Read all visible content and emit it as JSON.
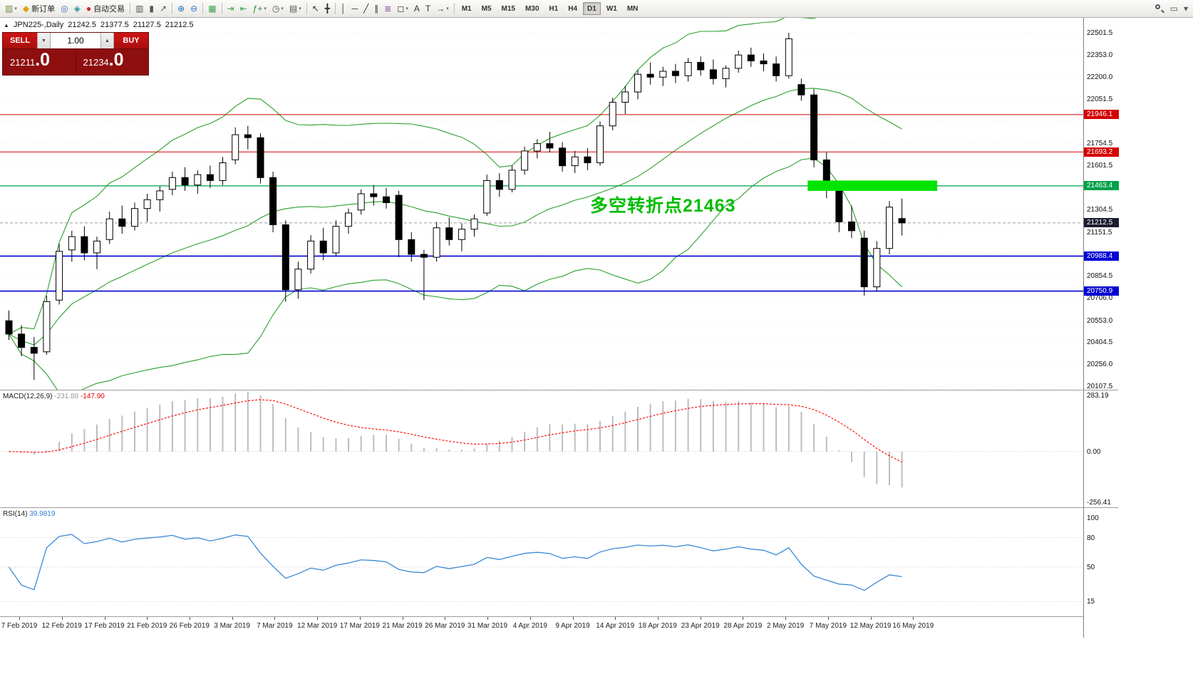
{
  "toolbar": {
    "dropdown_glyph": "▾",
    "new_order_label": "新订单",
    "autotrading_label": "自动交易",
    "timeframes": [
      "M1",
      "M5",
      "M15",
      "M30",
      "H1",
      "H4",
      "D1",
      "W1",
      "MN"
    ],
    "active_timeframe": "D1",
    "items": [
      {
        "name": "new-chart-button",
        "glyph": "▥",
        "color": "#6b8f3e",
        "dd": true
      },
      {
        "name": "new-order-button",
        "glyph": "◆",
        "color": "#dba410",
        "label": "新订单"
      },
      {
        "name": "profiles-icon",
        "glyph": "◎",
        "color": "#3a6fc4"
      },
      {
        "name": "data-window-icon",
        "glyph": "◈",
        "color": "#2f8f9e"
      },
      {
        "name": "autotrading-button",
        "glyph": "●",
        "color": "#cc2222",
        "label": "自动交易"
      },
      {
        "sep": true
      },
      {
        "name": "bar-chart-icon",
        "glyph": "▥",
        "color": "#555555"
      },
      {
        "name": "candlestick-chart-icon",
        "glyph": "▮",
        "color": "#555555"
      },
      {
        "name": "line-chart-icon",
        "glyph": "↗",
        "color": "#555555"
      },
      {
        "sep": true
      },
      {
        "name": "zoom-in-icon",
        "glyph": "⊕",
        "color": "#2a6fbb"
      },
      {
        "name": "zoom-out-icon",
        "glyph": "⊖",
        "color": "#2a6fbb"
      },
      {
        "sep": true
      },
      {
        "name": "tile-windows-icon",
        "glyph": "▦",
        "color": "#3c9e4d"
      },
      {
        "sep": true
      },
      {
        "name": "auto-scroll-icon",
        "glyph": "⇥",
        "color": "#3c9e4d"
      },
      {
        "name": "chart-shift-icon",
        "glyph": "⇤",
        "color": "#3c9e4d"
      },
      {
        "name": "indicators-icon",
        "glyph": "ƒ+",
        "color": "#2e8b2e",
        "dd": true
      },
      {
        "name": "periods-icon",
        "glyph": "◷",
        "color": "#555555",
        "dd": true
      },
      {
        "name": "templates-icon",
        "glyph": "▤",
        "color": "#555555",
        "dd": true
      },
      {
        "sep": true
      },
      {
        "name": "cursor-icon",
        "glyph": "↖",
        "color": "#333333"
      },
      {
        "name": "crosshair-icon",
        "glyph": "╋",
        "color": "#333333"
      },
      {
        "sep": true
      },
      {
        "name": "vertical-line-icon",
        "glyph": "│",
        "color": "#333333"
      },
      {
        "name": "horizontal-line-icon",
        "glyph": "─",
        "color": "#333333"
      },
      {
        "name": "trendline-icon",
        "glyph": "╱",
        "color": "#333333"
      },
      {
        "name": "channel-icon",
        "glyph": "∥",
        "color": "#333333"
      },
      {
        "name": "fibonacci-icon",
        "glyph": "≣",
        "color": "#8a5fb0"
      },
      {
        "name": "shapes-icon",
        "glyph": "◻",
        "color": "#333333",
        "dd": true
      },
      {
        "name": "text-icon",
        "glyph": "A",
        "color": "#333333"
      },
      {
        "name": "text-label-icon",
        "glyph": "T",
        "color": "#333333"
      },
      {
        "name": "arrows-icon",
        "glyph": "→",
        "color": "#333333",
        "dd": true
      },
      {
        "sep": true
      }
    ],
    "right_items": [
      {
        "name": "chart-search-button",
        "search": true
      },
      {
        "name": "window-layout-icon",
        "glyph": "▭",
        "color": "#555555"
      },
      {
        "name": "more-options-chevron",
        "glyph": "▾",
        "color": "#555555"
      }
    ]
  },
  "chart": {
    "header": {
      "toggle_glyph": "▲",
      "symbol_period": "JPN225-,Daily",
      "open": "21242.5",
      "high": "21377.5",
      "low": "21127.5",
      "close": "21212.5"
    },
    "one_click": {
      "sell_label": "SELL",
      "buy_label": "BUY",
      "volume": "1.00",
      "vol_down_glyph": "▼",
      "vol_up_glyph": "▲",
      "sell_price_main": "21211",
      "sell_price_big": ".0",
      "buy_price_main": "21234",
      "buy_price_big": ".0"
    },
    "annotation": {
      "text": "多空转折点21463",
      "color": "#00bd00"
    },
    "hlines": [
      {
        "price": 21946.1,
        "label": "21946.1",
        "color": "#d40000",
        "width": 1
      },
      {
        "price": 21693.2,
        "label": "21693.2",
        "color": "#d40000",
        "width": 1
      },
      {
        "price": 21463.4,
        "label": "21463.4",
        "color": "#00a24a",
        "width": 1.2
      },
      {
        "price": 20988.4,
        "label": "20988.4",
        "color": "#0000d4",
        "width": 1.6
      },
      {
        "price": 20750.9,
        "label": "20750.9",
        "color": "#0000d4",
        "width": 1.6
      }
    ],
    "current_price": {
      "value": 21212.5,
      "label": "21212.5",
      "chip_color": "#1c1c30"
    },
    "highlight_rect": {
      "color": "#00e400",
      "price_top": 21500,
      "price_bottom": 21430,
      "from_bar": 63.5,
      "to_bar": 73.8
    },
    "price_axis": [
      "22501.5",
      "22353.0",
      "22200.0",
      "22051.5",
      "21903.0",
      "21754.5",
      "21601.5",
      "21453.0",
      "21304.5",
      "21151.5",
      "21003.0",
      "20854.5",
      "20706.0",
      "20553.0",
      "20404.5",
      "20256.0",
      "20107.5"
    ],
    "time_axis": [
      "7 Feb 2019",
      "12 Feb 2019",
      "17 Feb 2019",
      "21 Feb 2019",
      "26 Feb 2019",
      "3 Mar 2019",
      "7 Mar 2019",
      "12 Mar 2019",
      "17 Mar 2019",
      "21 Mar 2019",
      "26 Mar 2019",
      "31 Mar 2019",
      "4 Apr 2019",
      "9 Apr 2019",
      "14 Apr 2019",
      "18 Apr 2019",
      "23 Apr 2019",
      "28 Apr 2019",
      "2 May 2019",
      "7 May 2019",
      "12 May 2019",
      "16 May 2019"
    ]
  },
  "macd": {
    "title": "MACD(12,26,9)",
    "value_main": "-231.88",
    "value_signal": "-147.90",
    "axis": [
      "283.19",
      "0.00",
      "-256.41"
    ],
    "bar_color": "#bdbdbd",
    "signal_color": "#ff0000"
  },
  "rsi": {
    "title": "RSI(14)",
    "value": "39.9819",
    "axis": [
      "100",
      "80",
      "50",
      "15"
    ],
    "levels": [
      80,
      50,
      15
    ],
    "line_color": "#3a8ad6"
  },
  "styles": {
    "bollinger_color": "#2aa02a",
    "grid_color": "#f0f0f0",
    "bull_color": "#ffffff",
    "bear_color": "#000000",
    "wick_color": "#000000"
  },
  "chart_data": {
    "type": "candlestick",
    "title": "JPN225-,Daily",
    "symbol": "JPN225",
    "timeframe": "Daily",
    "price_axis_range": [
      20107.5,
      22501.5
    ],
    "visible_dates": [
      "6 Feb 2019",
      "16 May 2019"
    ],
    "indicators": [
      {
        "name": "Bollinger Bands",
        "period": 20,
        "deviation": 2
      },
      {
        "name": "MACD",
        "params": [
          12,
          26,
          9
        ],
        "current": [
          -231.88,
          -147.9
        ]
      },
      {
        "name": "RSI",
        "params": [
          14
        ],
        "current": 39.9819
      }
    ],
    "candles": [
      [
        "6 Feb",
        20550,
        20620,
        20420,
        20460
      ],
      [
        "7 Feb",
        20460,
        20520,
        20310,
        20370
      ],
      [
        "8 Feb",
        20370,
        20440,
        20150,
        20330
      ],
      [
        "11 Feb",
        20340,
        20720,
        20320,
        20680
      ],
      [
        "12 Feb",
        20690,
        21070,
        20660,
        21020
      ],
      [
        "13 Feb",
        21030,
        21160,
        20950,
        21120
      ],
      [
        "14 Feb",
        21120,
        21190,
        20960,
        21010
      ],
      [
        "15 Feb",
        21010,
        21120,
        20900,
        21090
      ],
      [
        "18 Feb",
        21100,
        21290,
        21070,
        21240
      ],
      [
        "19 Feb",
        21240,
        21330,
        21140,
        21190
      ],
      [
        "20 Feb",
        21190,
        21350,
        21160,
        21310
      ],
      [
        "21 Feb",
        21310,
        21410,
        21220,
        21370
      ],
      [
        "22 Feb",
        21370,
        21460,
        21290,
        21430
      ],
      [
        "25 Feb",
        21440,
        21560,
        21400,
        21520
      ],
      [
        "26 Feb",
        21520,
        21590,
        21430,
        21470
      ],
      [
        "27 Feb",
        21470,
        21570,
        21410,
        21540
      ],
      [
        "28 Feb",
        21540,
        21600,
        21450,
        21500
      ],
      [
        "1 Mar",
        21500,
        21660,
        21470,
        21620
      ],
      [
        "4 Mar",
        21640,
        21860,
        21610,
        21810
      ],
      [
        "5 Mar",
        21810,
        21870,
        21710,
        21790
      ],
      [
        "6 Mar",
        21790,
        21820,
        21480,
        21520
      ],
      [
        "7 Mar",
        21520,
        21560,
        21150,
        21200
      ],
      [
        "8 Mar",
        21200,
        21230,
        20680,
        20760
      ],
      [
        "11 Mar",
        20760,
        20950,
        20700,
        20900
      ],
      [
        "12 Mar",
        20900,
        21130,
        20870,
        21090
      ],
      [
        "13 Mar",
        21090,
        21180,
        20960,
        21010
      ],
      [
        "14 Mar",
        21010,
        21230,
        20990,
        21190
      ],
      [
        "15 Mar",
        21190,
        21310,
        21140,
        21280
      ],
      [
        "18 Mar",
        21300,
        21440,
        21270,
        21410
      ],
      [
        "19 Mar",
        21410,
        21470,
        21330,
        21390
      ],
      [
        "20 Mar",
        21390,
        21450,
        21310,
        21350
      ],
      [
        "21 Mar",
        21400,
        21430,
        20980,
        21100
      ],
      [
        "22 Mar",
        21100,
        21150,
        20950,
        21000
      ],
      [
        "25 Mar",
        21000,
        21030,
        20690,
        20980
      ],
      [
        "26 Mar",
        20980,
        21220,
        20950,
        21180
      ],
      [
        "27 Mar",
        21180,
        21250,
        21060,
        21100
      ],
      [
        "28 Mar",
        21100,
        21210,
        21020,
        21170
      ],
      [
        "29 Mar",
        21170,
        21270,
        21120,
        21240
      ],
      [
        "1 Apr",
        21280,
        21540,
        21260,
        21500
      ],
      [
        "2 Apr",
        21500,
        21550,
        21390,
        21440
      ],
      [
        "3 Apr",
        21440,
        21600,
        21420,
        21570
      ],
      [
        "4 Apr",
        21570,
        21730,
        21540,
        21700
      ],
      [
        "5 Apr",
        21700,
        21780,
        21650,
        21750
      ],
      [
        "8 Apr",
        21750,
        21830,
        21690,
        21720
      ],
      [
        "9 Apr",
        21720,
        21760,
        21560,
        21600
      ],
      [
        "10 Apr",
        21600,
        21700,
        21550,
        21660
      ],
      [
        "11 Apr",
        21660,
        21720,
        21570,
        21620
      ],
      [
        "12 Apr",
        21620,
        21900,
        21600,
        21870
      ],
      [
        "15 Apr",
        21870,
        22060,
        21840,
        22030
      ],
      [
        "16 Apr",
        22030,
        22140,
        21950,
        22100
      ],
      [
        "17 Apr",
        22100,
        22250,
        22050,
        22220
      ],
      [
        "18 Apr",
        22220,
        22300,
        22150,
        22200
      ],
      [
        "19 Apr",
        22200,
        22270,
        22140,
        22240
      ],
      [
        "22 Apr",
        22240,
        22290,
        22160,
        22210
      ],
      [
        "23 Apr",
        22210,
        22330,
        22170,
        22300
      ],
      [
        "24 Apr",
        22300,
        22340,
        22210,
        22250
      ],
      [
        "25 Apr",
        22250,
        22320,
        22150,
        22190
      ],
      [
        "26 Apr",
        22190,
        22280,
        22130,
        22260
      ],
      [
        "29 Apr",
        22260,
        22380,
        22230,
        22350
      ],
      [
        "30 Apr",
        22350,
        22400,
        22270,
        22310
      ],
      [
        "1 May",
        22310,
        22360,
        22240,
        22290
      ],
      [
        "2 May",
        22290,
        22340,
        22170,
        22210
      ],
      [
        "3 May",
        22210,
        22500,
        22190,
        22460
      ],
      [
        "6 May",
        22150,
        22190,
        22040,
        22080
      ],
      [
        "7 May",
        22080,
        22120,
        21590,
        21640
      ],
      [
        "8 May",
        21640,
        21690,
        21380,
        21440
      ],
      [
        "9 May",
        21440,
        21480,
        21150,
        21220
      ],
      [
        "10 May",
        21220,
        21330,
        21110,
        21160
      ],
      [
        "13 May",
        21110,
        21160,
        20720,
        20780
      ],
      [
        "14 May",
        20780,
        21090,
        20750,
        21040
      ],
      [
        "15 May",
        21040,
        21360,
        21000,
        21320
      ],
      [
        "16 May",
        21242.5,
        21377.5,
        21127.5,
        21212.5
      ]
    ]
  }
}
